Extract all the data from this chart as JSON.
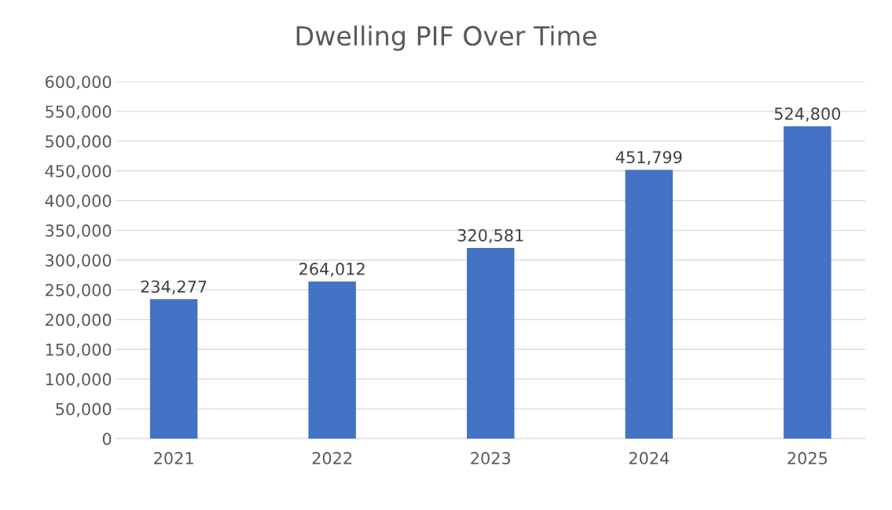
{
  "chart_data": {
    "type": "bar",
    "title": "Dwelling PIF Over Time",
    "categories": [
      "2021",
      "2022",
      "2023",
      "2024",
      "2025"
    ],
    "values": [
      234277,
      264012,
      320581,
      451799,
      524800
    ],
    "color": "#4472c4",
    "value_labels": [
      "234,277",
      "264,012",
      "320,581",
      "451,799",
      "524,800"
    ],
    "ylim": [
      0,
      600000
    ],
    "yticks": [
      {
        "value": 0,
        "label": "0"
      },
      {
        "value": 50000,
        "label": "50,000"
      },
      {
        "value": 100000,
        "label": "100,000"
      },
      {
        "value": 150000,
        "label": "150,000"
      },
      {
        "value": 200000,
        "label": "200,000"
      },
      {
        "value": 250000,
        "label": "250,000"
      },
      {
        "value": 300000,
        "label": "300,000"
      },
      {
        "value": 350000,
        "label": "350,000"
      },
      {
        "value": 400000,
        "label": "400,000"
      },
      {
        "value": 450000,
        "label": "450,000"
      },
      {
        "value": 500000,
        "label": "500,000"
      },
      {
        "value": 550000,
        "label": "550,000"
      },
      {
        "value": 600000,
        "label": "600,000"
      }
    ],
    "grid": "y",
    "legend": false
  }
}
